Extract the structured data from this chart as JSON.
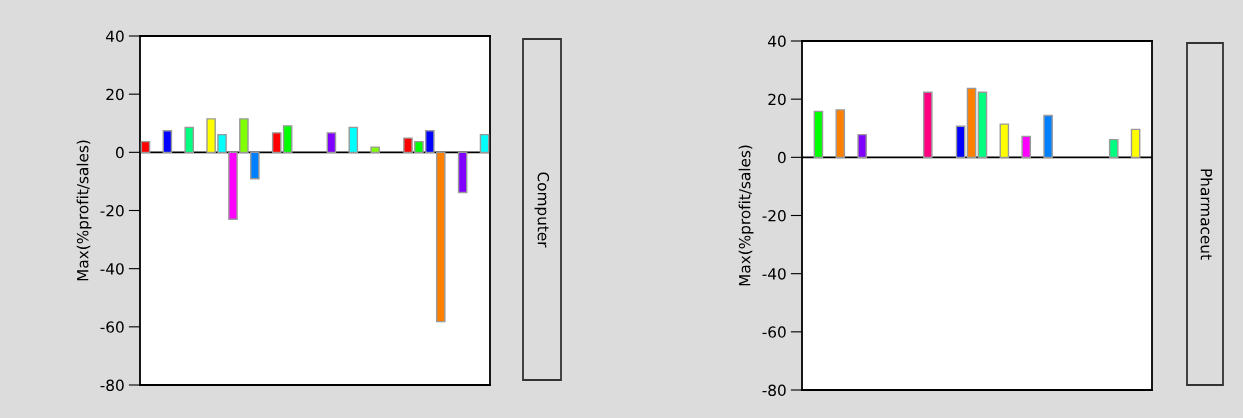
{
  "chart_data": [
    {
      "type": "bar",
      "annotations": [
        "Computer"
      ],
      "ylabel": "Max(%profit/sales)",
      "ylim": [
        -80,
        40
      ],
      "yticks": [
        -80,
        -60,
        -40,
        -20,
        0,
        20,
        40
      ],
      "tick_labels": "y",
      "grid": false,
      "legend": false,
      "categories": [
        null,
        null,
        null,
        null,
        null,
        null,
        null,
        null,
        null,
        null,
        null,
        null,
        null,
        null,
        null,
        null,
        null,
        null,
        null,
        null,
        null,
        null,
        null,
        null,
        null,
        null,
        null,
        null,
        null,
        null,
        null,
        null
      ],
      "values": [
        3.7,
        null,
        7.4,
        null,
        8.6,
        null,
        11.5,
        6.1,
        -23,
        11.5,
        -9.1,
        null,
        6.7,
        9.1,
        null,
        null,
        null,
        6.7,
        null,
        8.6,
        null,
        1.8,
        null,
        null,
        4.9,
        3.7,
        7.4,
        -58.2,
        null,
        -13.8,
        null,
        6.1
      ],
      "colors": [
        "#ff0000",
        null,
        "#0000ff",
        null,
        "#00ff80",
        null,
        "#ffff00",
        "#00ffff",
        "#ff00ff",
        "#80ff00",
        "#0080ff",
        null,
        "#ff0000",
        "#00ff00",
        null,
        null,
        null,
        "#8000ff",
        null,
        "#00ffff",
        null,
        "#80ff00",
        null,
        null,
        "#ff0000",
        "#00ff00",
        "#0000ff",
        "#ff8000",
        null,
        "#8000ff",
        null,
        "#00ffff"
      ],
      "ref_lines": [
        {
          "axis": "y",
          "value": 0,
          "color": "#000000"
        }
      ]
    },
    {
      "type": "bar",
      "annotations": [
        "Pharmaceut"
      ],
      "ylabel": "Max(%profit/sales)",
      "ylim": [
        -80,
        40
      ],
      "yticks": [
        -80,
        -60,
        -40,
        -20,
        0,
        20,
        40
      ],
      "tick_labels": "y",
      "grid": false,
      "legend": false,
      "categories": [
        null,
        null,
        null,
        null,
        null,
        null,
        null,
        null,
        null,
        null,
        null,
        null,
        null,
        null,
        null,
        null,
        null,
        null,
        null,
        null,
        null,
        null,
        null,
        null,
        null,
        null,
        null,
        null,
        null,
        null,
        null,
        null
      ],
      "values": [
        null,
        15.8,
        null,
        16.3,
        null,
        7.8,
        null,
        null,
        null,
        null,
        null,
        22.4,
        null,
        null,
        10.7,
        23.7,
        22.4,
        null,
        11.4,
        null,
        7.2,
        null,
        14.4,
        null,
        null,
        null,
        null,
        null,
        6.1,
        null,
        9.6,
        null
      ],
      "colors": [
        null,
        "#00ff00",
        null,
        "#ff8000",
        null,
        "#8000ff",
        null,
        null,
        null,
        null,
        null,
        "#ff0080",
        null,
        null,
        "#0000ff",
        "#ff8000",
        "#00ff80",
        null,
        "#ffff00",
        null,
        "#ff00ff",
        null,
        "#0080ff",
        null,
        null,
        null,
        null,
        null,
        "#00ff80",
        null,
        "#ffff00",
        null
      ],
      "ref_lines": [
        {
          "axis": "y",
          "value": 0,
          "color": "#000000"
        }
      ]
    }
  ]
}
